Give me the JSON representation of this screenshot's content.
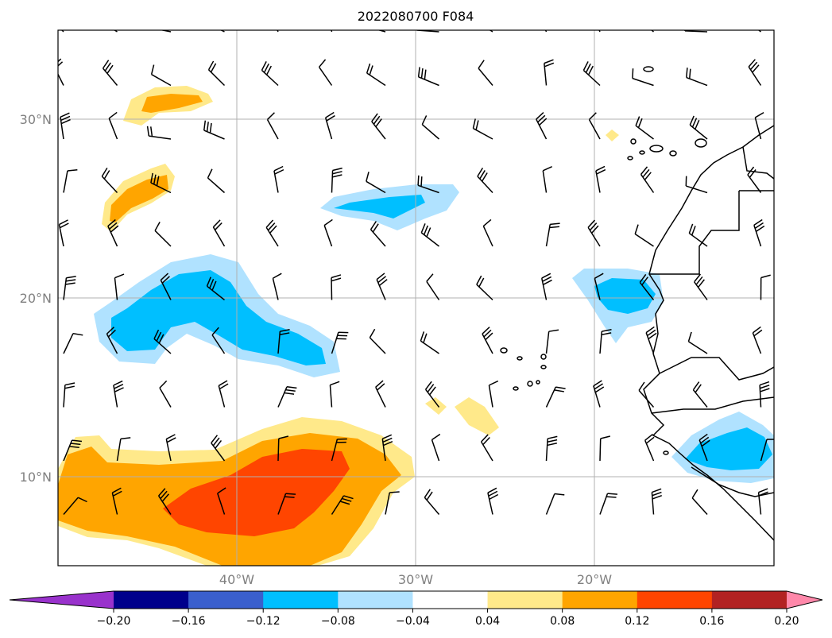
{
  "title": "2022080700 F084",
  "map": {
    "lon_range": [
      -50,
      -10
    ],
    "lat_range": [
      5,
      35
    ],
    "lon_labels": [
      {
        "lon": -40,
        "text": "40°W"
      },
      {
        "lon": -30,
        "text": "30°W"
      },
      {
        "lon": -20,
        "text": "20°W"
      }
    ],
    "lat_labels": [
      {
        "lat": 30,
        "text": "30°N"
      },
      {
        "lat": 20,
        "text": "20°N"
      },
      {
        "lat": 10,
        "text": "10°N"
      }
    ],
    "gridlines": true,
    "label_color": "#808080"
  },
  "colorbar": {
    "ticks": [
      "−0.20",
      "−0.16",
      "−0.12",
      "−0.08",
      "−0.04",
      "0.04",
      "0.08",
      "0.12",
      "0.16",
      "0.20"
    ],
    "colors": [
      "#9932cc",
      "#00008b",
      "#3a5fcd",
      "#00bfff",
      "#b0e2ff",
      "#ffffff",
      "#ffe98a",
      "#ffa500",
      "#ff4500",
      "#b22222",
      "#ff88aa"
    ],
    "extend": "both"
  },
  "chart_data": {
    "type": "heatmap",
    "variable_units": "",
    "positive_regions": [
      {
        "center": [
          -43.5,
          31
        ],
        "peak_bin": "0.08–0.12"
      },
      {
        "center": [
          -44.5,
          26
        ],
        "peak_bin": "0.08–0.12"
      },
      {
        "center": [
          -38,
          9.5
        ],
        "peak_bin": "0.12–0.16"
      },
      {
        "center": [
          -29,
          13.5
        ],
        "peak_bin": "0.04–0.08"
      },
      {
        "center": [
          -27,
          13
        ],
        "peak_bin": "0.04–0.08"
      },
      {
        "center": [
          -19,
          29
        ],
        "peak_bin": "0.04–0.08"
      }
    ],
    "negative_regions": [
      {
        "center": [
          -41,
          18.5
        ],
        "peak_bin": "−0.12–−0.08"
      },
      {
        "center": [
          -30.5,
          25
        ],
        "peak_bin": "−0.12–−0.08"
      },
      {
        "center": [
          -18,
          19.5
        ],
        "peak_bin": "−0.12–−0.08"
      },
      {
        "center": [
          -13,
          10.5
        ],
        "peak_bin": "−0.12–−0.08"
      }
    ],
    "wind_barbs": true
  }
}
